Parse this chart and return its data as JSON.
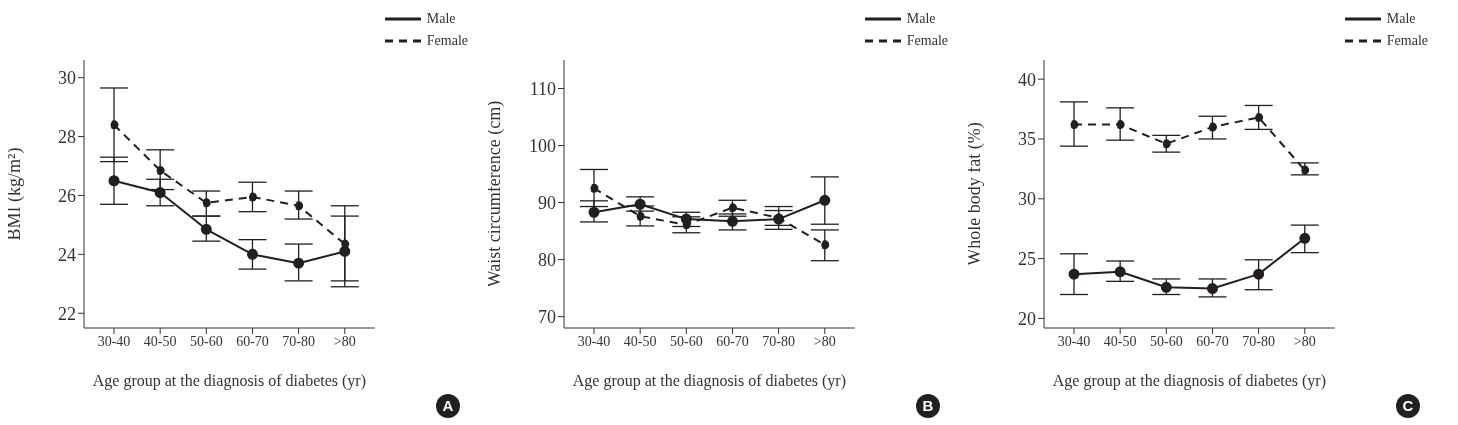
{
  "chart_data": [
    {
      "type": "line",
      "xlabel": "Age group at the diagnosis of diabetes (yr)",
      "ylabel": "BMI (kg/m²)",
      "categories": [
        "30-40",
        "40-50",
        "50-60",
        "60-70",
        "70-80",
        ">80"
      ],
      "ylim": [
        21.5,
        30.6
      ],
      "yticks": [
        22,
        24,
        26,
        28,
        30
      ],
      "legend": "top right",
      "marker": "circle",
      "annotations": [
        "A"
      ],
      "series": [
        {
          "name": "Male",
          "color": "#231f20",
          "line_style": "solid",
          "values": [
            26.5,
            26.1,
            24.85,
            24.0,
            23.7,
            24.1
          ],
          "errors": [
            [
              25.7,
              27.3
            ],
            [
              25.65,
              26.55
            ],
            [
              24.45,
              25.3
            ],
            [
              23.5,
              24.5
            ],
            [
              23.1,
              24.35
            ],
            [
              22.9,
              25.3
            ]
          ]
        },
        {
          "name": "Female",
          "color": "#231f20",
          "line_style": "dashed",
          "values": [
            28.4,
            26.85,
            25.75,
            25.95,
            25.65,
            24.35
          ],
          "errors": [
            [
              27.15,
              29.65
            ],
            [
              26.2,
              27.55
            ],
            [
              25.3,
              26.15
            ],
            [
              25.45,
              26.45
            ],
            [
              25.2,
              26.15
            ],
            [
              23.1,
              25.65
            ]
          ]
        }
      ]
    },
    {
      "type": "line",
      "xlabel": "Age group at the diagnosis of diabetes (yr)",
      "ylabel": "Waist circumference (cm)",
      "categories": [
        "30-40",
        "40-50",
        "50-60",
        "60-70",
        "70-80",
        ">80"
      ],
      "ylim": [
        68,
        115
      ],
      "yticks": [
        70,
        80,
        90,
        100,
        110
      ],
      "legend": "top right",
      "marker": "circle",
      "annotations": [
        "B"
      ],
      "series": [
        {
          "name": "Male",
          "color": "#231f20",
          "line_style": "solid",
          "values": [
            88.3,
            89.7,
            87.1,
            86.7,
            87.1,
            90.4
          ],
          "errors": [
            [
              86.6,
              90.3
            ],
            [
              88.5,
              91
            ],
            [
              85.8,
              88.3
            ],
            [
              85.2,
              88
            ],
            [
              85.3,
              88.6
            ],
            [
              86.2,
              94.5
            ]
          ]
        },
        {
          "name": "Female",
          "color": "#231f20",
          "line_style": "dashed",
          "values": [
            92.5,
            87.6,
            86.1,
            89.1,
            87.3,
            82.6
          ],
          "errors": [
            [
              89.3,
              95.8
            ],
            [
              85.9,
              89.4
            ],
            [
              84.7,
              87.5
            ],
            [
              87.6,
              90.4
            ],
            [
              86,
              89.3
            ],
            [
              79.8,
              85.2
            ]
          ]
        }
      ]
    },
    {
      "type": "line",
      "xlabel": "Age group at the diagnosis of diabetes (yr)",
      "ylabel": "Whole body fat (%)",
      "categories": [
        "30-40",
        "40-50",
        "50-60",
        "60-70",
        "70-80",
        ">80"
      ],
      "ylim": [
        19.2,
        41.6
      ],
      "yticks": [
        20,
        25,
        30,
        35,
        40
      ],
      "legend": "top right",
      "marker": "circle",
      "annotations": [
        "C"
      ],
      "series": [
        {
          "name": "Male",
          "color": "#231f20",
          "line_style": "solid",
          "values": [
            23.7,
            23.9,
            22.6,
            22.5,
            23.7,
            26.7
          ],
          "errors": [
            [
              22,
              25.4
            ],
            [
              23.1,
              24.8
            ],
            [
              22,
              23.3
            ],
            [
              21.8,
              23.3
            ],
            [
              22.4,
              24.9
            ],
            [
              25.5,
              27.8
            ]
          ]
        },
        {
          "name": "Female",
          "color": "#231f20",
          "line_style": "dashed",
          "values": [
            36.2,
            36.2,
            34.6,
            36,
            36.8,
            32.4
          ],
          "errors": [
            [
              34.4,
              38.1
            ],
            [
              34.9,
              37.6
            ],
            [
              33.9,
              35.3
            ],
            [
              35,
              36.9
            ],
            [
              35.8,
              37.8
            ],
            [
              32,
              33
            ]
          ]
        }
      ]
    }
  ]
}
